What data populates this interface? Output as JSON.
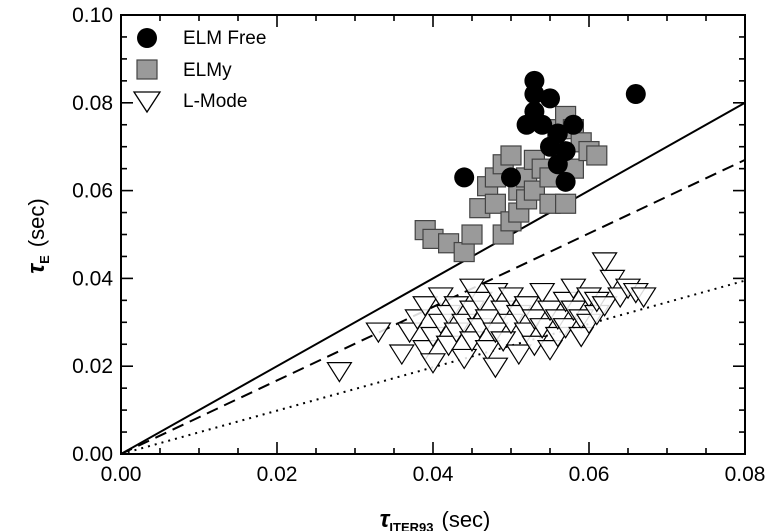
{
  "chart_data": {
    "type": "scatter",
    "title": "",
    "xlabel": {
      "symbol": "τ",
      "subscript": "ITER93",
      "unit": "(sec)"
    },
    "ylabel": {
      "symbol": "τ",
      "subscript": "E",
      "unit": "(sec)"
    },
    "xlim": [
      0,
      0.08
    ],
    "ylim": [
      0,
      0.1
    ],
    "x_ticks": [
      "0.00",
      "0.02",
      "0.04",
      "0.06",
      "0.08"
    ],
    "y_ticks": [
      "0.00",
      "0.02",
      "0.04",
      "0.06",
      "0.08",
      "0.10"
    ],
    "grid": false,
    "legend_position": "top-left",
    "series": [
      {
        "name": "ELM Free",
        "marker": "filled-circle",
        "color": "#000000",
        "points": [
          [
            0.044,
            0.063
          ],
          [
            0.05,
            0.063
          ],
          [
            0.052,
            0.075
          ],
          [
            0.053,
            0.082
          ],
          [
            0.053,
            0.085
          ],
          [
            0.053,
            0.078
          ],
          [
            0.054,
            0.075
          ],
          [
            0.055,
            0.081
          ],
          [
            0.055,
            0.07
          ],
          [
            0.056,
            0.066
          ],
          [
            0.056,
            0.073
          ],
          [
            0.057,
            0.069
          ],
          [
            0.057,
            0.062
          ],
          [
            0.058,
            0.075
          ],
          [
            0.066,
            0.082
          ]
        ]
      },
      {
        "name": "ELMy",
        "marker": "gray-square",
        "color": "#9a9a9a",
        "points": [
          [
            0.039,
            0.051
          ],
          [
            0.04,
            0.049
          ],
          [
            0.042,
            0.048
          ],
          [
            0.044,
            0.046
          ],
          [
            0.045,
            0.05
          ],
          [
            0.046,
            0.056
          ],
          [
            0.047,
            0.061
          ],
          [
            0.048,
            0.063
          ],
          [
            0.048,
            0.057
          ],
          [
            0.049,
            0.066
          ],
          [
            0.049,
            0.05
          ],
          [
            0.05,
            0.068
          ],
          [
            0.05,
            0.053
          ],
          [
            0.051,
            0.06
          ],
          [
            0.051,
            0.055
          ],
          [
            0.052,
            0.063
          ],
          [
            0.052,
            0.058
          ],
          [
            0.053,
            0.067
          ],
          [
            0.053,
            0.06
          ],
          [
            0.054,
            0.065
          ],
          [
            0.055,
            0.063
          ],
          [
            0.055,
            0.057
          ],
          [
            0.056,
            0.074
          ],
          [
            0.057,
            0.077
          ],
          [
            0.058,
            0.074
          ],
          [
            0.058,
            0.065
          ],
          [
            0.059,
            0.071
          ],
          [
            0.06,
            0.069
          ],
          [
            0.061,
            0.068
          ],
          [
            0.057,
            0.057
          ]
        ]
      },
      {
        "name": "L-Mode",
        "marker": "open-down-triangle",
        "color": "#000000",
        "points": [
          [
            0.028,
            0.019
          ],
          [
            0.033,
            0.028
          ],
          [
            0.036,
            0.023
          ],
          [
            0.037,
            0.028
          ],
          [
            0.038,
            0.031
          ],
          [
            0.039,
            0.024
          ],
          [
            0.039,
            0.034
          ],
          [
            0.04,
            0.021
          ],
          [
            0.04,
            0.027
          ],
          [
            0.041,
            0.03
          ],
          [
            0.041,
            0.036
          ],
          [
            0.042,
            0.025
          ],
          [
            0.042,
            0.032
          ],
          [
            0.043,
            0.028
          ],
          [
            0.043,
            0.034
          ],
          [
            0.044,
            0.022
          ],
          [
            0.044,
            0.03
          ],
          [
            0.045,
            0.026
          ],
          [
            0.045,
            0.033
          ],
          [
            0.045,
            0.038
          ],
          [
            0.046,
            0.029
          ],
          [
            0.046,
            0.035
          ],
          [
            0.047,
            0.024
          ],
          [
            0.047,
            0.031
          ],
          [
            0.048,
            0.02
          ],
          [
            0.048,
            0.028
          ],
          [
            0.048,
            0.037
          ],
          [
            0.049,
            0.033
          ],
          [
            0.049,
            0.026
          ],
          [
            0.05,
            0.03
          ],
          [
            0.05,
            0.036
          ],
          [
            0.051,
            0.023
          ],
          [
            0.051,
            0.032
          ],
          [
            0.052,
            0.028
          ],
          [
            0.052,
            0.034
          ],
          [
            0.053,
            0.025
          ],
          [
            0.053,
            0.031
          ],
          [
            0.054,
            0.037
          ],
          [
            0.054,
            0.029
          ],
          [
            0.055,
            0.024
          ],
          [
            0.055,
            0.033
          ],
          [
            0.056,
            0.027
          ],
          [
            0.056,
            0.031
          ],
          [
            0.057,
            0.035
          ],
          [
            0.057,
            0.029
          ],
          [
            0.058,
            0.033
          ],
          [
            0.058,
            0.038
          ],
          [
            0.059,
            0.031
          ],
          [
            0.059,
            0.027
          ],
          [
            0.06,
            0.036
          ],
          [
            0.06,
            0.03
          ],
          [
            0.061,
            0.032
          ],
          [
            0.061,
            0.035
          ],
          [
            0.062,
            0.034
          ],
          [
            0.062,
            0.044
          ],
          [
            0.063,
            0.04
          ],
          [
            0.064,
            0.036
          ],
          [
            0.065,
            0.038
          ],
          [
            0.066,
            0.037
          ],
          [
            0.067,
            0.036
          ]
        ]
      }
    ],
    "lines": [
      {
        "style": "solid",
        "x": [
          0,
          0.08
        ],
        "y": [
          0,
          0.08
        ]
      },
      {
        "style": "dashed",
        "x": [
          0,
          0.08
        ],
        "y": [
          0,
          0.067
        ]
      },
      {
        "style": "dotted",
        "x": [
          0,
          0.08
        ],
        "y": [
          0,
          0.0395
        ]
      }
    ]
  }
}
